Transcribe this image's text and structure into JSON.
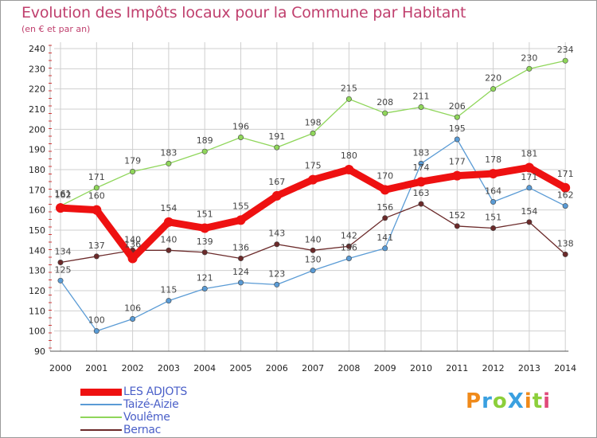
{
  "header": {
    "title": "Evolution des Impôts locaux pour la Commune par Habitant",
    "subtitle": "(en € et par an)"
  },
  "logo": {
    "text": "ProXiti"
  },
  "chart_data": {
    "type": "line",
    "title": "Evolution des Impôts locaux pour la Commune par Habitant",
    "subtitle": "(en € et par an)",
    "categories": [
      "2000",
      "2001",
      "2002",
      "2003",
      "2004",
      "2005",
      "2006",
      "2007",
      "2008",
      "2009",
      "2010",
      "2011",
      "2012",
      "2013",
      "2014"
    ],
    "ylim": [
      90,
      240
    ],
    "yticks": [
      90,
      100,
      110,
      120,
      130,
      140,
      150,
      160,
      170,
      180,
      190,
      200,
      210,
      220,
      230,
      240
    ],
    "grid": true,
    "legend_position": "bottom-left",
    "series": [
      {
        "name": "LES ADJOTS",
        "color": "#ee1111",
        "values": [
          161,
          160,
          136,
          154,
          151,
          155,
          167,
          175,
          180,
          170,
          174,
          177,
          178,
          181,
          171
        ]
      },
      {
        "name": "Taizé-Aizie",
        "color": "#5a9bd5",
        "values": [
          125,
          100,
          106,
          115,
          121,
          124,
          123,
          130,
          136,
          141,
          183,
          195,
          164,
          171,
          162
        ]
      },
      {
        "name": "Voulême",
        "color": "#8fd65a",
        "values": [
          162,
          171,
          179,
          183,
          189,
          196,
          191,
          198,
          215,
          208,
          211,
          206,
          220,
          230,
          234
        ]
      },
      {
        "name": "Bernac",
        "color": "#6b2a2a",
        "values": [
          134,
          137,
          140,
          140,
          139,
          136,
          143,
          140,
          142,
          156,
          163,
          152,
          151,
          154,
          138
        ]
      }
    ]
  }
}
